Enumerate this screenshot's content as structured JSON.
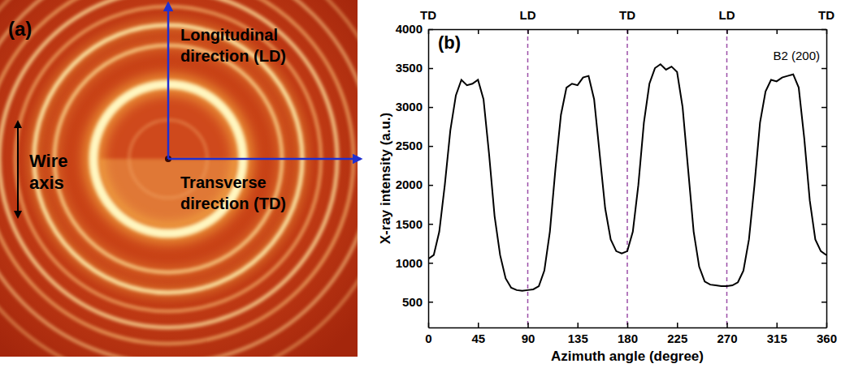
{
  "diffraction_image": {
    "panel_label": "(a)",
    "longitudinal": [
      "Longitudinal",
      "direction (LD)"
    ],
    "transverse": [
      "Transverse",
      "direction (TD)"
    ],
    "wire_axis": [
      "Wire",
      "axis"
    ]
  },
  "chart_data": {
    "type": "line",
    "panel_label": "(b)",
    "x_label": "Azimuth angle (degree)",
    "y_label": "X-ray intensity (a.u.)",
    "annotations": [
      {
        "text": "B2 (200)"
      }
    ],
    "top_labels": [
      {
        "value": 0,
        "label": "TD"
      },
      {
        "value": 90,
        "label": "LD"
      },
      {
        "value": 180,
        "label": "TD"
      },
      {
        "value": 270,
        "label": "LD"
      },
      {
        "value": 360,
        "label": "TD"
      }
    ],
    "reference_lines": {
      "values": [
        90,
        180,
        270
      ],
      "color": "#9c4fa8",
      "line_style": "dashed"
    },
    "x": [
      0,
      5,
      10,
      15,
      20,
      25,
      30,
      35,
      40,
      45,
      50,
      55,
      60,
      65,
      70,
      75,
      80,
      85,
      90,
      95,
      100,
      105,
      110,
      115,
      120,
      125,
      130,
      135,
      140,
      145,
      150,
      155,
      160,
      165,
      170,
      175,
      180,
      185,
      190,
      195,
      200,
      205,
      210,
      215,
      220,
      225,
      230,
      235,
      240,
      245,
      250,
      255,
      260,
      265,
      270,
      275,
      280,
      285,
      290,
      295,
      300,
      305,
      310,
      315,
      320,
      325,
      330,
      335,
      340,
      345,
      350,
      355,
      360
    ],
    "values": [
      1050,
      1100,
      1400,
      2000,
      2700,
      3150,
      3350,
      3280,
      3300,
      3350,
      3100,
      2400,
      1600,
      1100,
      800,
      680,
      650,
      640,
      650,
      660,
      700,
      900,
      1400,
      2200,
      2900,
      3250,
      3300,
      3280,
      3380,
      3400,
      3100,
      2400,
      1700,
      1300,
      1150,
      1120,
      1150,
      1400,
      2000,
      2800,
      3300,
      3500,
      3550,
      3480,
      3520,
      3450,
      3000,
      2200,
      1400,
      950,
      760,
      720,
      710,
      700,
      700,
      710,
      750,
      900,
      1300,
      2000,
      2800,
      3200,
      3350,
      3330,
      3380,
      3400,
      3420,
      3250,
      2600,
      1800,
      1300,
      1150,
      1100
    ],
    "color": "#000000",
    "line_style": "solid",
    "xlim": [
      0,
      360
    ],
    "xticks": [
      0,
      45,
      90,
      135,
      180,
      225,
      270,
      315,
      360
    ],
    "ylim": [
      170,
      4000
    ],
    "yticks": [
      500,
      1000,
      1500,
      2000,
      2500,
      3000,
      3500,
      4000
    ],
    "grid": false
  }
}
